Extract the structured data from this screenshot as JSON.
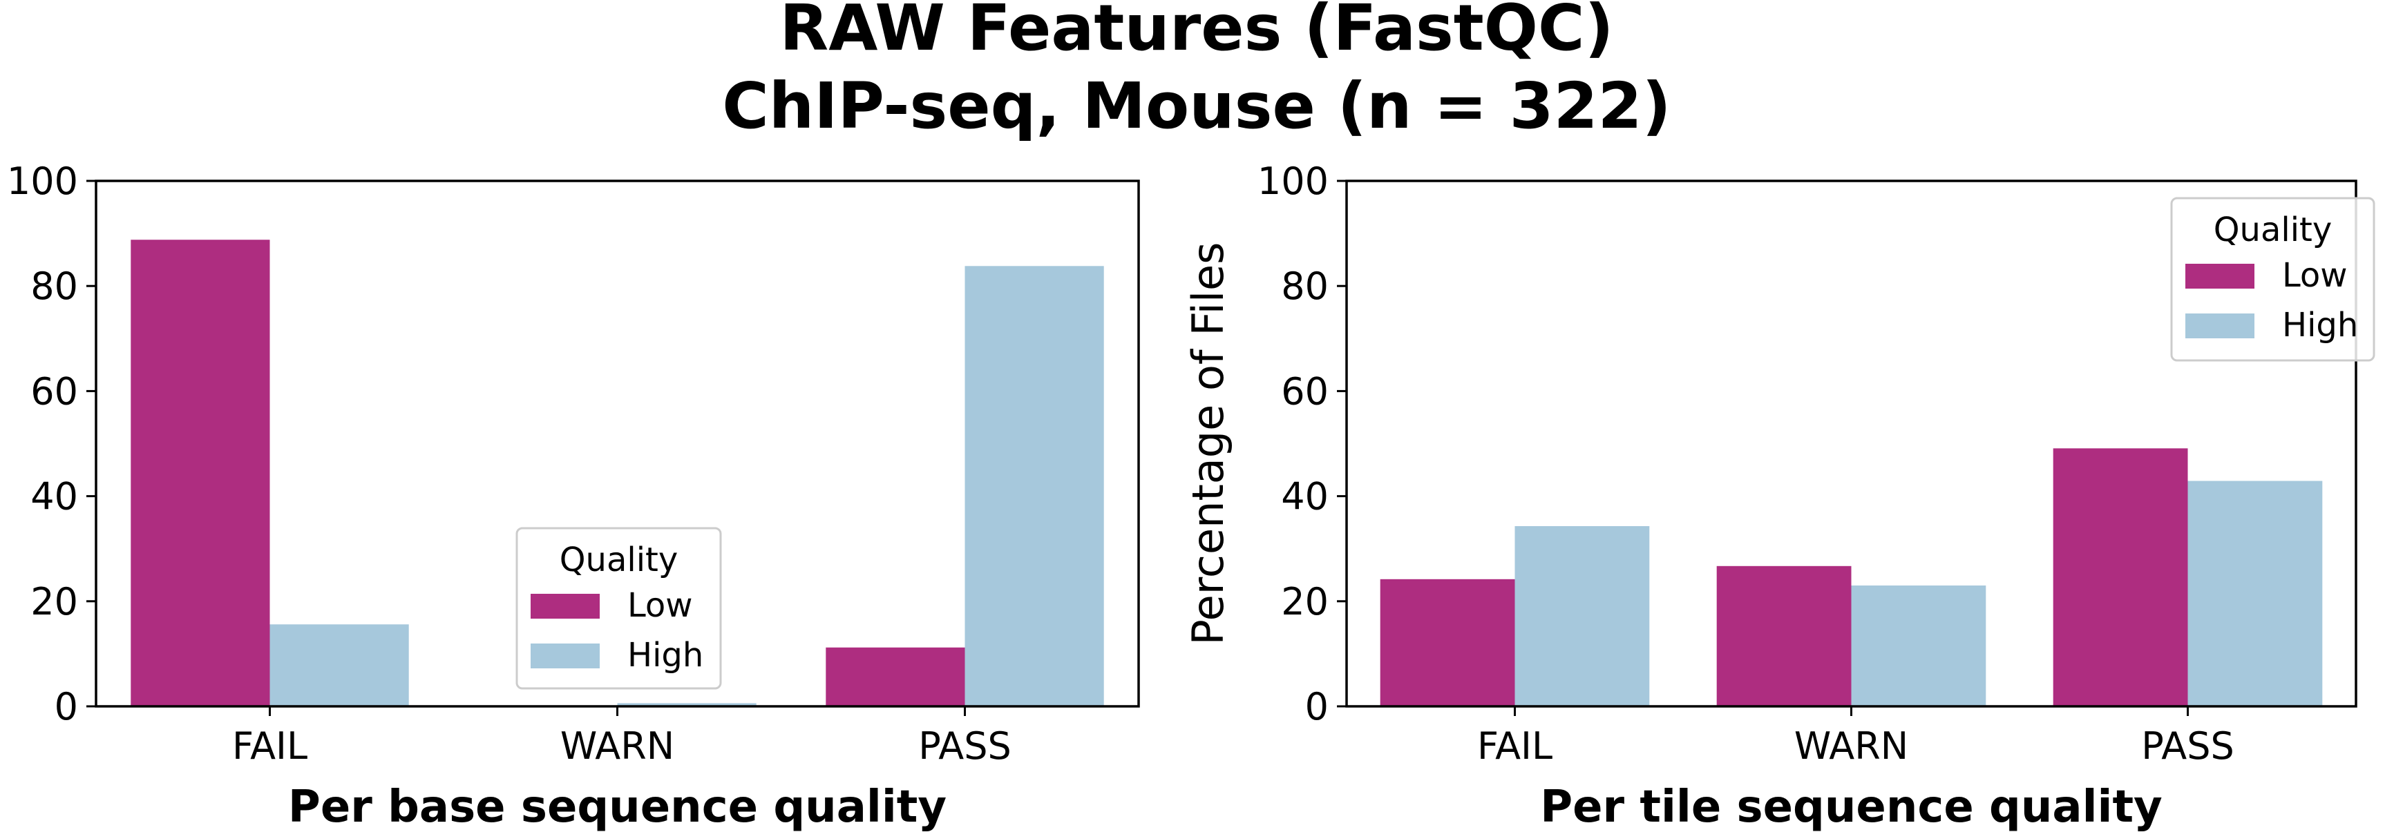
{
  "figure": {
    "title_line1": "RAW Features (FastQC)",
    "title_line2": "ChIP-seq, Mouse (n = 322)"
  },
  "colors": {
    "Low": "#ae2d80",
    "High": "#a6c8dc"
  },
  "chart_data": [
    {
      "type": "bar",
      "categories": [
        "FAIL",
        "WARN",
        "PASS"
      ],
      "series": [
        {
          "name": "Low",
          "values": [
            88.8,
            0.0,
            11.2
          ]
        },
        {
          "name": "High",
          "values": [
            15.6,
            0.6,
            83.8
          ]
        }
      ],
      "xlabel": "Per base sequence quality",
      "ylabel": "",
      "ylim": [
        0,
        100
      ],
      "yticks": [
        0,
        20,
        40,
        60,
        80,
        100
      ],
      "legend": {
        "title": "Quality",
        "location": "lower-center"
      },
      "grid": false
    },
    {
      "type": "bar",
      "categories": [
        "FAIL",
        "WARN",
        "PASS"
      ],
      "series": [
        {
          "name": "Low",
          "values": [
            24.2,
            26.7,
            49.1
          ]
        },
        {
          "name": "High",
          "values": [
            34.3,
            23.0,
            42.9
          ]
        }
      ],
      "xlabel": "Per tile sequence quality",
      "ylabel": "Percentage of Files",
      "ylim": [
        0,
        100
      ],
      "yticks": [
        0,
        20,
        40,
        60,
        80,
        100
      ],
      "legend": {
        "title": "Quality",
        "location": "upper-right"
      },
      "grid": false
    }
  ]
}
